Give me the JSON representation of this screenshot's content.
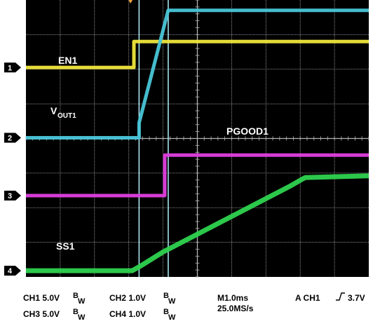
{
  "chart_data": {
    "type": "line",
    "title": "",
    "x_divisions": 10,
    "y_divisions": 8,
    "grid": true,
    "background_color": "#000000",
    "grid_color": "#b4b4b4",
    "traces": [
      {
        "id": "ch1",
        "marker": "1",
        "label": "EN1",
        "color": "#f0e63c",
        "thickness": 5,
        "points": [
          [
            0,
            6.05
          ],
          [
            3.15,
            6.05
          ],
          [
            3.15,
            6.8
          ],
          [
            10,
            6.8
          ]
        ]
      },
      {
        "id": "ch2",
        "marker": "2",
        "label": "V",
        "label_sub": "OUT1",
        "color": "#49c6d8",
        "thickness": 5,
        "points": [
          [
            0,
            4.02
          ],
          [
            3.3,
            4.02
          ],
          [
            3.3,
            4.45
          ],
          [
            4.15,
            7.7
          ],
          [
            10,
            7.7
          ]
        ]
      },
      {
        "id": "ch3",
        "marker": "3",
        "label": "PGOOD1",
        "color": "#e23fe0",
        "thickness": 5,
        "points": [
          [
            0,
            2.35
          ],
          [
            4.05,
            2.35
          ],
          [
            4.05,
            3.52
          ],
          [
            10,
            3.52
          ]
        ]
      },
      {
        "id": "ch4",
        "marker": "4",
        "label": "SS1",
        "color": "#2ed34f",
        "thickness": 7,
        "points": [
          [
            0,
            0.18
          ],
          [
            3.1,
            0.18
          ],
          [
            3.35,
            0.32
          ],
          [
            4.0,
            0.72
          ],
          [
            7.7,
            2.62
          ],
          [
            8.05,
            2.82
          ],
          [
            8.15,
            2.87
          ],
          [
            10,
            2.92
          ]
        ]
      }
    ],
    "cursors": [
      {
        "x": 3.3,
        "color": "#a8e4f0"
      },
      {
        "x": 4.15,
        "color": "#a8e4f0"
      }
    ],
    "trigger_marker_x": 3.05
  },
  "readout": {
    "ch1": "CH1  5.0V",
    "ch2": "CH2  1.0V",
    "ch3": "CH3  5.0V",
    "ch4": "CH4  1.0V",
    "bw_b": "B",
    "bw_w": "W",
    "timebase": "M1.0ms",
    "sample_rate": "25.0MS/s",
    "trigger_prefix": "A  CH1",
    "trigger_level": "3.7V"
  }
}
